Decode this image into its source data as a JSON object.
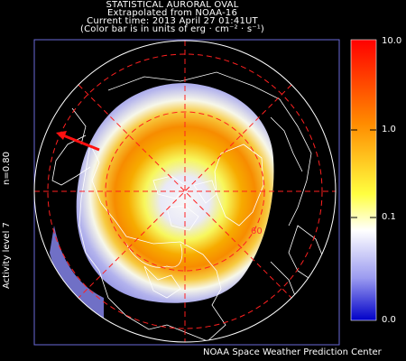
{
  "header": {
    "line1": "STATISTICAL AURORAL OVAL",
    "line2": "Extrapolated from NOAA-16",
    "line3": "Current time: 2013 April 27 01:41UT",
    "line4": "(Color bar is in units of erg · cm⁻² · s⁻¹)"
  },
  "side": {
    "n_label": "n=0.80",
    "activity_label": "Activity level 7"
  },
  "credit": "NOAA Space Weather Prediction Center",
  "map": {
    "latitude_label": "60"
  },
  "colorbar": {
    "ticks": [
      "10.0",
      "1.0",
      "0.1",
      "0.0"
    ],
    "colors": [
      "#ff0000",
      "#ff8c00",
      "#ffff40",
      "#ffffff",
      "#9a9af0",
      "#0000c8"
    ]
  },
  "chart_data": {
    "type": "heatmap",
    "title": "STATISTICAL AURORAL OVAL",
    "subtitle": "Extrapolated from NOAA-16",
    "timestamp": "2013 April 27 01:41UT",
    "units": "erg · cm⁻² · s⁻¹",
    "scale": "log",
    "range": [
      0.0,
      10.0
    ],
    "colorbar_ticks": [
      10.0,
      1.0,
      0.1,
      0.0
    ],
    "activity_level": 7,
    "n": 0.8,
    "latitude_circle_label": 60,
    "projection": "north polar",
    "oval_peak_energy_flux_approx": 2.0
  }
}
